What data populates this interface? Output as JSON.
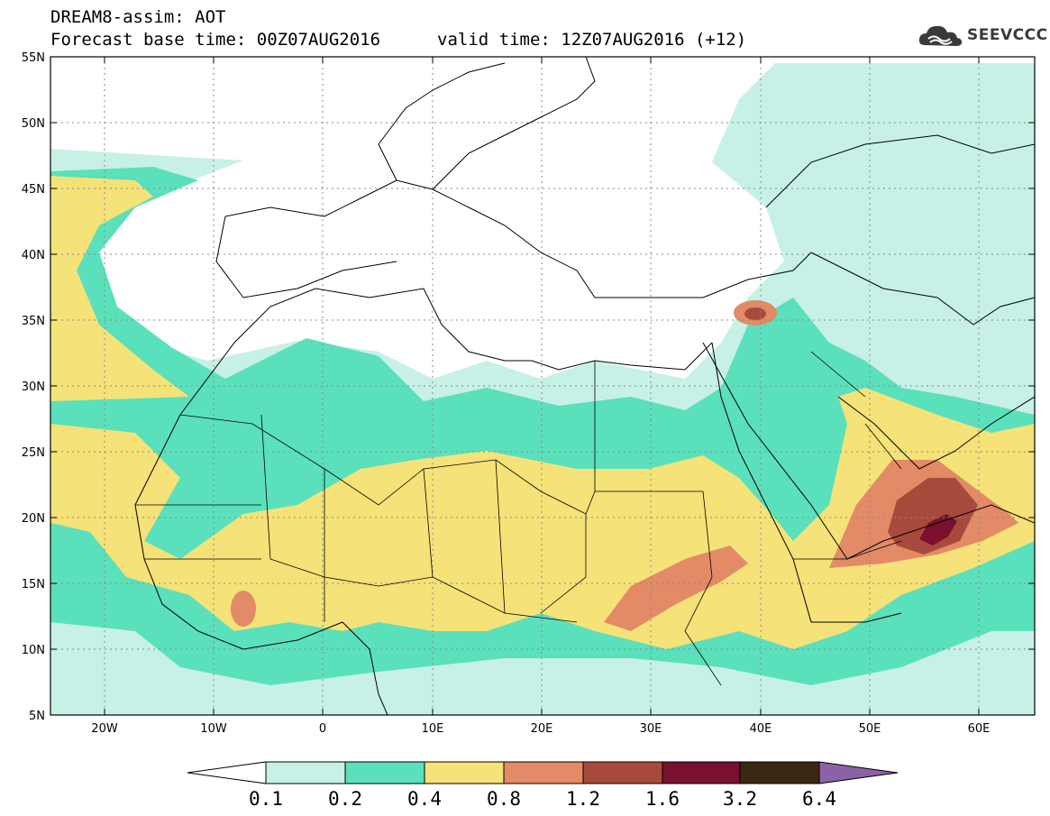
{
  "header": {
    "title": "DREAM8-assim: AOT",
    "base_time": "Forecast base time: 00Z07AUG2016",
    "valid_time": "valid time: 12Z07AUG2016 (+12)"
  },
  "logo": {
    "text": "SEEVCCC",
    "icon": "cloud-icon"
  },
  "axes": {
    "lat_labels": [
      "55N",
      "50N",
      "45N",
      "40N",
      "35N",
      "30N",
      "25N",
      "20N",
      "15N",
      "10N",
      "5N"
    ],
    "lon_labels": [
      "20W",
      "10W",
      "0",
      "10E",
      "20E",
      "30E",
      "40E",
      "50E",
      "60E"
    ]
  },
  "colorbar": {
    "labels": [
      "0.1",
      "0.2",
      "0.4",
      "0.8",
      "1.2",
      "1.6",
      "3.2",
      "6.4"
    ],
    "colors": [
      "#ffffff",
      "#c7f1e6",
      "#5ae0bb",
      "#f5e278",
      "#e38a66",
      "#a84a3b",
      "#7a0f2e",
      "#3b2714",
      "#8c62a6"
    ]
  },
  "field_colors": {
    "c01": "#c7f1e6",
    "c02": "#5ae0bb",
    "c04": "#f5e278",
    "c08": "#e38a66",
    "c12": "#a84a3b",
    "c16": "#7a0f2e"
  }
}
